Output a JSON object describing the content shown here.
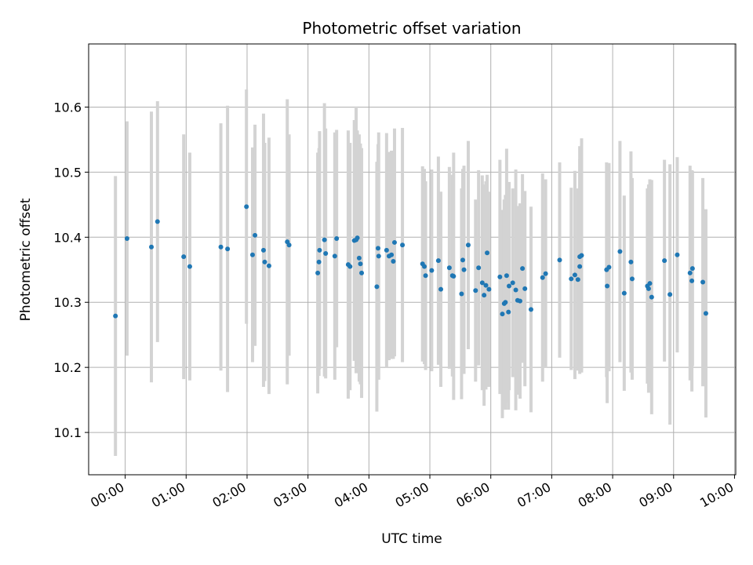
{
  "chart_data": {
    "type": "scatter",
    "title": "Photometric offset variation",
    "xlabel": "UTC time",
    "ylabel": "Photometric offset",
    "x_unit": "hours",
    "xlim": [
      -0.6,
      10.02
    ],
    "ylim": [
      10.035,
      10.697
    ],
    "grid": true,
    "x_ticks": [
      0,
      1,
      2,
      3,
      4,
      5,
      6,
      7,
      8,
      9,
      10
    ],
    "x_tick_labels": [
      "00:00",
      "01:00",
      "02:00",
      "03:00",
      "04:00",
      "05:00",
      "06:00",
      "07:00",
      "08:00",
      "09:00",
      "10:00"
    ],
    "y_ticks": [
      10.1,
      10.2,
      10.3,
      10.4,
      10.5,
      10.6
    ],
    "y_tick_labels": [
      "10.1",
      "10.2",
      "10.3",
      "10.4",
      "10.5",
      "10.6"
    ],
    "colors": {
      "point": "#1f77b4",
      "errorbar": "#d3d3d3",
      "grid": "#b0b0b0"
    },
    "series": [
      {
        "name": "Photometric offset",
        "x": [
          -0.16,
          0.03,
          0.43,
          0.53,
          0.96,
          1.06,
          1.57,
          1.68,
          1.99,
          2.09,
          2.13,
          2.27,
          2.29,
          2.36,
          2.66,
          2.69,
          3.16,
          3.18,
          3.19,
          3.27,
          3.29,
          3.44,
          3.47,
          3.66,
          3.69,
          3.76,
          3.79,
          3.81,
          3.84,
          3.86,
          3.88,
          4.13,
          4.15,
          4.16,
          4.29,
          4.33,
          4.37,
          4.4,
          4.42,
          4.55,
          4.88,
          4.91,
          4.93,
          5.03,
          5.14,
          5.18,
          5.32,
          5.37,
          5.39,
          5.52,
          5.54,
          5.56,
          5.63,
          5.75,
          5.8,
          5.86,
          5.89,
          5.92,
          5.94,
          5.97,
          6.15,
          6.19,
          6.22,
          6.24,
          6.26,
          6.29,
          6.3,
          6.36,
          6.41,
          6.44,
          6.48,
          6.52,
          6.56,
          6.66,
          6.85,
          6.9,
          7.13,
          7.32,
          7.38,
          7.43,
          7.46,
          7.46,
          7.49,
          7.9,
          7.91,
          7.94,
          8.12,
          8.19,
          8.3,
          8.32,
          8.57,
          8.59,
          8.61,
          8.64,
          8.85,
          8.94,
          9.06,
          9.27,
          9.3,
          9.31,
          9.48,
          9.53
        ],
        "y": [
          10.279,
          10.398,
          10.385,
          10.424,
          10.37,
          10.355,
          10.385,
          10.382,
          10.447,
          10.373,
          10.403,
          10.38,
          10.362,
          10.356,
          10.393,
          10.388,
          10.345,
          10.362,
          10.38,
          10.396,
          10.375,
          10.371,
          10.398,
          10.358,
          10.355,
          10.395,
          10.396,
          10.399,
          10.368,
          10.359,
          10.345,
          10.324,
          10.383,
          10.371,
          10.38,
          10.371,
          10.373,
          10.363,
          10.392,
          10.388,
          10.359,
          10.355,
          10.341,
          10.349,
          10.364,
          10.32,
          10.353,
          10.341,
          10.34,
          10.313,
          10.365,
          10.35,
          10.388,
          10.318,
          10.353,
          10.33,
          10.311,
          10.326,
          10.376,
          10.32,
          10.339,
          10.282,
          10.298,
          10.3,
          10.341,
          10.285,
          10.325,
          10.33,
          10.319,
          10.303,
          10.302,
          10.352,
          10.321,
          10.289,
          10.338,
          10.344,
          10.365,
          10.336,
          10.342,
          10.335,
          10.37,
          10.355,
          10.372,
          10.35,
          10.325,
          10.354,
          10.378,
          10.314,
          10.362,
          10.336,
          10.325,
          10.321,
          10.329,
          10.308,
          10.364,
          10.312,
          10.373,
          10.345,
          10.333,
          10.352,
          10.331,
          10.283
        ],
        "yerr": [
          0.215,
          0.18,
          0.208,
          0.185,
          0.188,
          0.175,
          0.19,
          0.22,
          0.18,
          0.165,
          0.17,
          0.21,
          0.183,
          0.197,
          0.219,
          0.17,
          0.185,
          0.175,
          0.183,
          0.21,
          0.192,
          0.19,
          0.167,
          0.206,
          0.19,
          0.185,
          0.205,
          0.165,
          0.19,
          0.185,
          0.192,
          0.192,
          0.16,
          0.19,
          0.18,
          0.16,
          0.16,
          0.15,
          0.175,
          0.18,
          0.15,
          0.15,
          0.145,
          0.155,
          0.16,
          0.15,
          0.155,
          0.155,
          0.19,
          0.162,
          0.14,
          0.16,
          0.16,
          0.14,
          0.15,
          0.165,
          0.17,
          0.16,
          0.12,
          0.15,
          0.18,
          0.16,
          0.16,
          0.165,
          0.195,
          0.15,
          0.16,
          0.145,
          0.185,
          0.145,
          0.15,
          0.145,
          0.15,
          0.158,
          0.16,
          0.145,
          0.15,
          0.14,
          0.16,
          0.14,
          0.17,
          0.165,
          0.18,
          0.165,
          0.18,
          0.16,
          0.17,
          0.15,
          0.17,
          0.155,
          0.15,
          0.16,
          0.16,
          0.18,
          0.155,
          0.2,
          0.15,
          0.165,
          0.17,
          0.15,
          0.16,
          0.16
        ]
      }
    ]
  }
}
